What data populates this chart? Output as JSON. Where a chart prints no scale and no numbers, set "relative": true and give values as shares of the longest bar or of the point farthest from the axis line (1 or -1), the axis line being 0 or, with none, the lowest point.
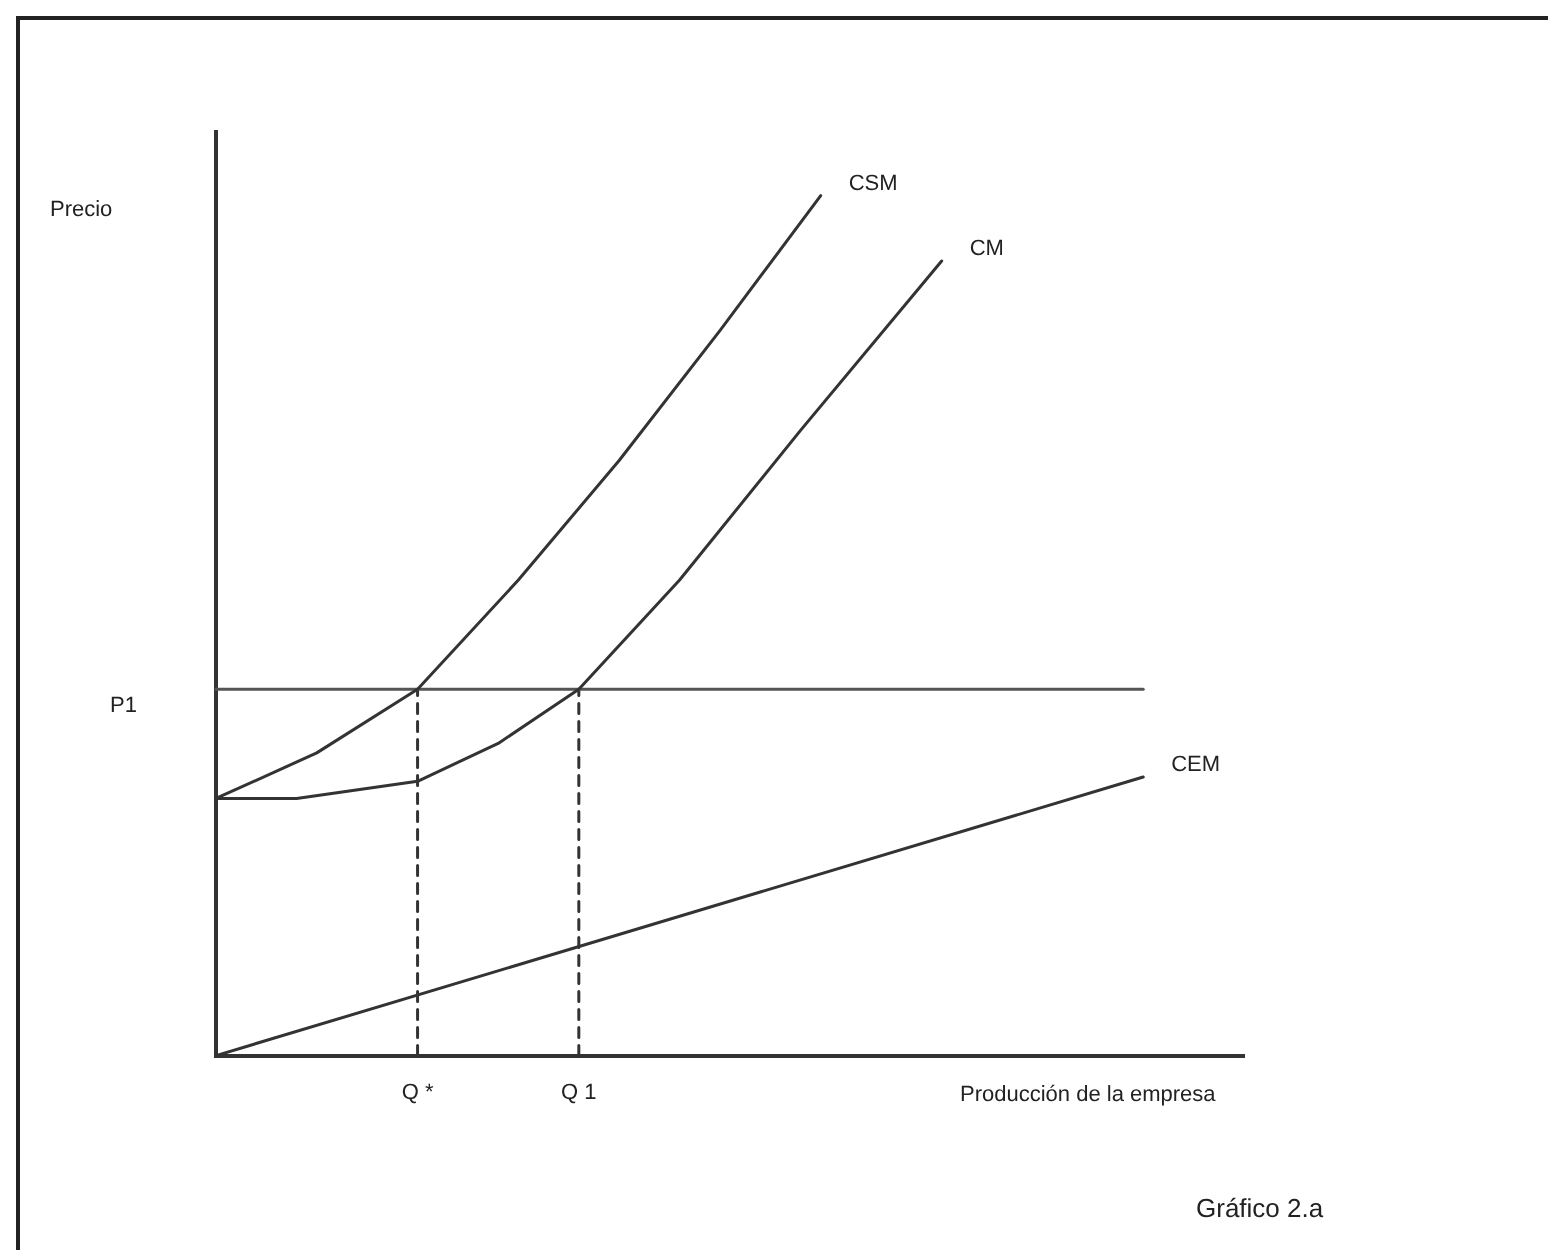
{
  "chart_data": {
    "type": "line",
    "relative": true,
    "xlabel": "Producción de la empresa",
    "tick_labels": "x",
    "grid": false,
    "legend": false,
    "marker": "none",
    "categories": [
      null,
      null,
      null,
      null,
      null,
      null,
      null,
      null,
      null,
      null,
      "Q *",
      null,
      null,
      null,
      null,
      null,
      null,
      null,
      "Q 1",
      null,
      null,
      null,
      null,
      null,
      null,
      null,
      null,
      null,
      null,
      null,
      null,
      null,
      null,
      null,
      null,
      null,
      null,
      null,
      null,
      null,
      null,
      null,
      null,
      null,
      null,
      null,
      null,
      null,
      null,
      null,
      null,
      null
    ],
    "annotations": [
      "Precio",
      "P1",
      "Gráfico 2.a"
    ],
    "series": [
      {
        "name": "CSM",
        "color": "#333333",
        "values": [
          0.299,
          null,
          null,
          null,
          null,
          0.352,
          null,
          null,
          null,
          null,
          0.426,
          null,
          null,
          null,
          null,
          0.553,
          null,
          null,
          null,
          null,
          0.692,
          null,
          null,
          null,
          null,
          0.843,
          null,
          null,
          null,
          null,
          1,
          null,
          null,
          null,
          null,
          null,
          null,
          null,
          null,
          null,
          null,
          null,
          null,
          null,
          null,
          null,
          null,
          null,
          null,
          null,
          null,
          null
        ]
      },
      {
        "name": "CM",
        "color": "#333333",
        "values": [
          0.299,
          null,
          null,
          null,
          0.299,
          null,
          null,
          null,
          null,
          null,
          0.319,
          null,
          null,
          null,
          0.363,
          null,
          null,
          null,
          0.426,
          null,
          null,
          null,
          null,
          0.553,
          null,
          null,
          null,
          null,
          null,
          0.727,
          null,
          null,
          null,
          null,
          null,
          null,
          0.924,
          null,
          null,
          null,
          null,
          null,
          null,
          null,
          null,
          null,
          null,
          null,
          null,
          null,
          null,
          null
        ]
      },
      {
        "name": "CEM",
        "color": "#333333",
        "values": [
          0,
          null,
          null,
          null,
          null,
          null,
          null,
          null,
          null,
          null,
          null,
          null,
          null,
          null,
          null,
          null,
          null,
          null,
          null,
          null,
          null,
          null,
          null,
          null,
          null,
          null,
          null,
          null,
          null,
          null,
          null,
          null,
          null,
          null,
          null,
          null,
          null,
          null,
          null,
          null,
          null,
          null,
          null,
          null,
          null,
          null,
          0.324,
          null,
          null,
          null,
          null,
          null
        ]
      },
      {
        "color": "#555555",
        "values": [
          0.426,
          null,
          null,
          null,
          null,
          null,
          null,
          null,
          null,
          null,
          null,
          null,
          null,
          null,
          null,
          null,
          null,
          null,
          null,
          null,
          null,
          null,
          null,
          null,
          null,
          null,
          null,
          null,
          null,
          null,
          null,
          null,
          null,
          null,
          null,
          null,
          null,
          null,
          null,
          null,
          null,
          null,
          null,
          null,
          null,
          null,
          0.426,
          null,
          null,
          null,
          null,
          null
        ]
      },
      {
        "color": "#333333",
        "line_style": "dashed",
        "x": [
          "Q *",
          "Q *"
        ],
        "values": [
          0,
          0.426
        ]
      },
      {
        "color": "#333333",
        "line_style": "dashed",
        "x": [
          "Q 1",
          "Q 1"
        ],
        "values": [
          0,
          0.426
        ]
      }
    ]
  }
}
